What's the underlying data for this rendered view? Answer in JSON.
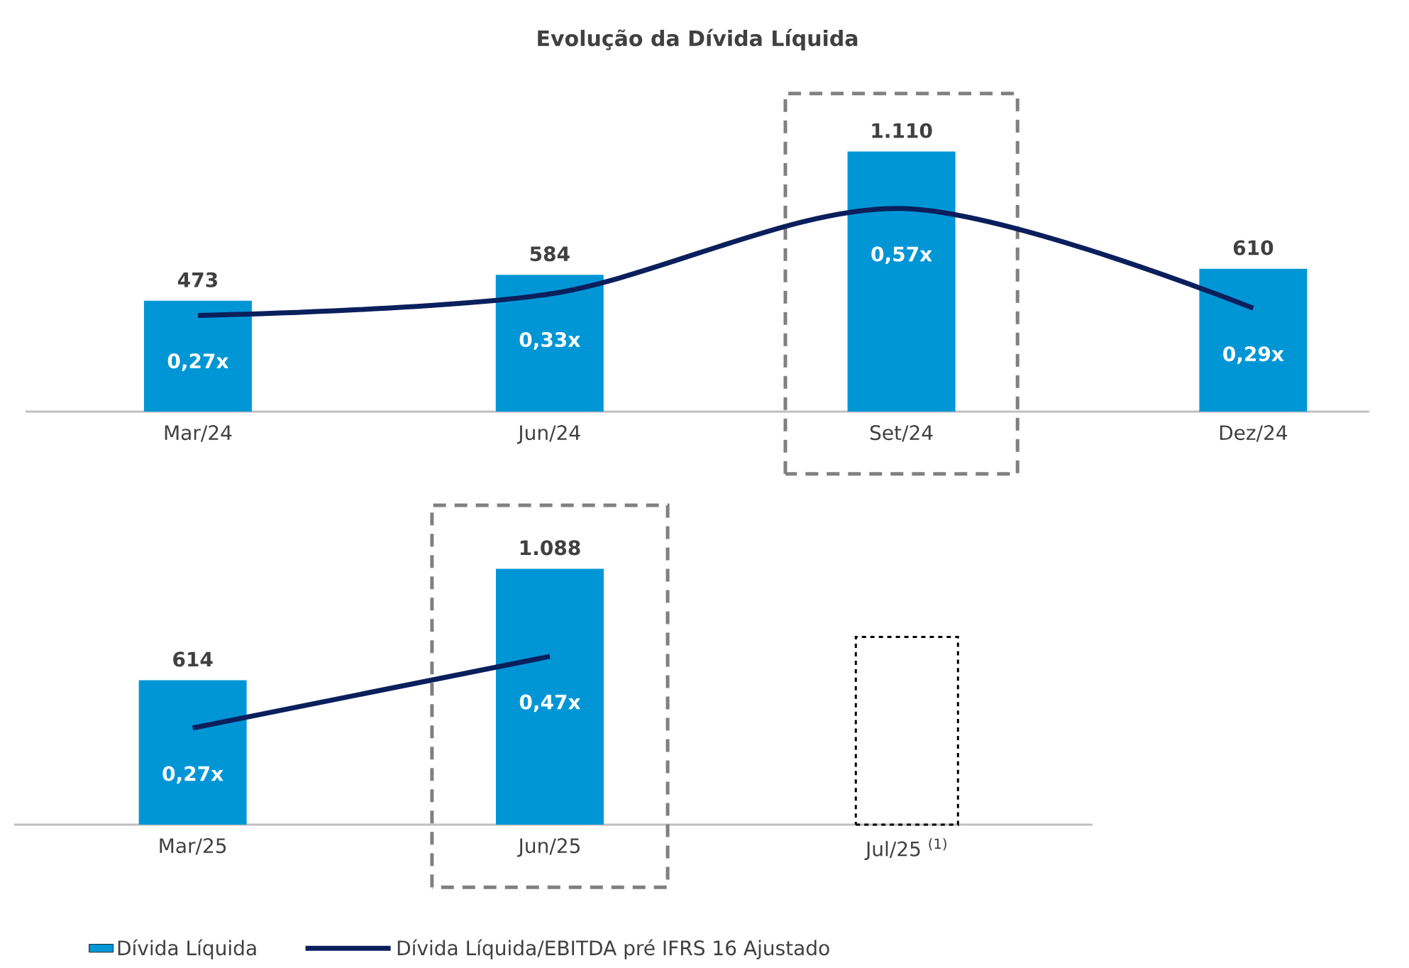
{
  "chart_data": [
    {
      "type": "bar",
      "title": "Evolução da Dívida Líquida",
      "categories": [
        "Mar/24",
        "Jun/24",
        "Set/24",
        "Dez/24"
      ],
      "tick_labels": "x",
      "series": [
        {
          "color": "#0096d6",
          "values": [
            473,
            584,
            1110,
            610
          ],
          "value_labels": [
            "473",
            "584",
            "1.110",
            "610"
          ]
        },
        {
          "type": "line",
          "axis": "y2",
          "color": "#0a1f5c",
          "values": [
            0.27,
            0.33,
            0.57,
            0.29
          ],
          "value_labels": [
            "0,27x",
            "0,33x",
            "0,57x",
            "0,29x"
          ]
        }
      ]
    },
    {
      "type": "bar",
      "categories": [
        "Mar/25",
        "Jun/25",
        "Jul/25 $^{(1)}$"
      ],
      "tick_labels": "x",
      "legend": "bottom",
      "series": [
        {
          "name": "Dívida Líquida",
          "color": "#0096d6",
          "values": [
            614,
            1088,
            null
          ],
          "value_labels": [
            "614",
            "1.088",
            null
          ]
        },
        {
          "color": "#000000",
          "line_style": "dashed",
          "values": [
            null,
            null,
            798
          ]
        },
        {
          "type": "line",
          "axis": "y2",
          "name": "Dívida Líquida/EBITDA pré IFRS 16 Ajustado",
          "color": "#0a1f5c",
          "values": [
            0.27,
            0.47,
            null
          ],
          "value_labels": [
            "0,27x",
            "0,47x",
            null
          ]
        }
      ]
    }
  ]
}
